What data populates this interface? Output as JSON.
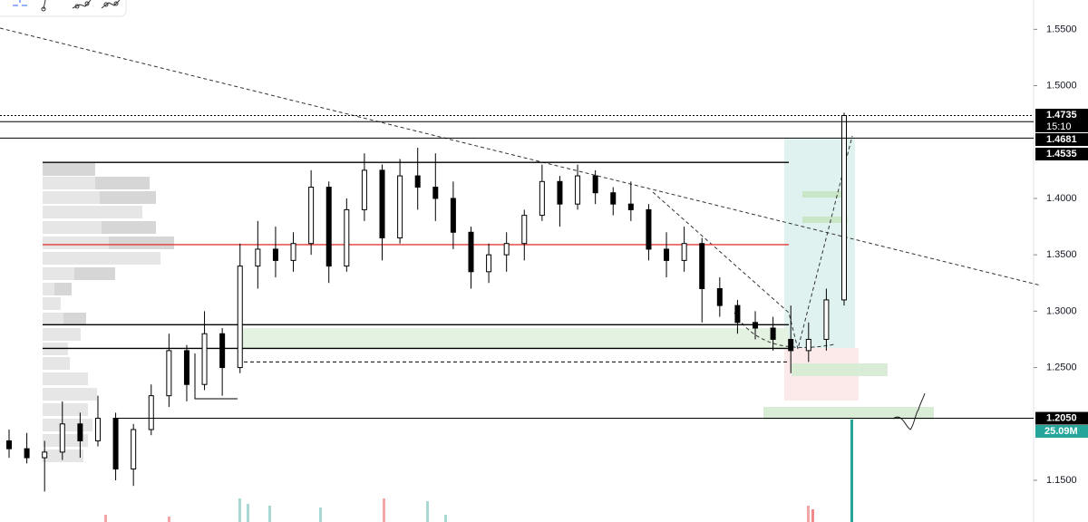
{
  "chart_data": {
    "type": "candlestick",
    "ylim": [
      1.113,
      1.576
    ],
    "yticks": [
      {
        "value": 1.15,
        "label": "1.1500"
      },
      {
        "value": 1.25,
        "label": "1.2500"
      },
      {
        "value": 1.3,
        "label": "1.3000"
      },
      {
        "value": 1.35,
        "label": "1.3500"
      },
      {
        "value": 1.4,
        "label": "1.4000"
      },
      {
        "value": 1.5,
        "label": "1.5000"
      },
      {
        "value": 1.55,
        "label": "1.5500"
      }
    ],
    "ohlc": [
      [
        1.185,
        1.195,
        1.17,
        1.178
      ],
      [
        1.178,
        1.192,
        1.165,
        1.17
      ],
      [
        1.17,
        1.185,
        1.14,
        1.175
      ],
      [
        1.175,
        1.22,
        1.168,
        1.2
      ],
      [
        1.2,
        1.21,
        1.17,
        1.185
      ],
      [
        1.185,
        1.225,
        1.18,
        1.205
      ],
      [
        1.205,
        1.21,
        1.15,
        1.16
      ],
      [
        1.16,
        1.2,
        1.145,
        1.195
      ],
      [
        1.195,
        1.235,
        1.19,
        1.225
      ],
      [
        1.225,
        1.28,
        1.215,
        1.265
      ],
      [
        1.265,
        1.27,
        1.22,
        1.235
      ],
      [
        1.235,
        1.3,
        1.23,
        1.28
      ],
      [
        1.28,
        1.285,
        1.225,
        1.25
      ],
      [
        1.25,
        1.36,
        1.245,
        1.34
      ],
      [
        1.34,
        1.38,
        1.32,
        1.355
      ],
      [
        1.355,
        1.375,
        1.33,
        1.345
      ],
      [
        1.345,
        1.37,
        1.335,
        1.36
      ],
      [
        1.36,
        1.425,
        1.35,
        1.41
      ],
      [
        1.41,
        1.415,
        1.325,
        1.34
      ],
      [
        1.34,
        1.4,
        1.335,
        1.39
      ],
      [
        1.39,
        1.44,
        1.38,
        1.425
      ],
      [
        1.425,
        1.43,
        1.345,
        1.365
      ],
      [
        1.365,
        1.435,
        1.36,
        1.42
      ],
      [
        1.42,
        1.445,
        1.39,
        1.41
      ],
      [
        1.41,
        1.44,
        1.38,
        1.4
      ],
      [
        1.4,
        1.415,
        1.355,
        1.37
      ],
      [
        1.37,
        1.375,
        1.32,
        1.335
      ],
      [
        1.335,
        1.36,
        1.325,
        1.35
      ],
      [
        1.35,
        1.37,
        1.335,
        1.36
      ],
      [
        1.36,
        1.39,
        1.345,
        1.385
      ],
      [
        1.385,
        1.43,
        1.38,
        1.415
      ],
      [
        1.415,
        1.42,
        1.375,
        1.395
      ],
      [
        1.395,
        1.43,
        1.39,
        1.42
      ],
      [
        1.42,
        1.425,
        1.395,
        1.405
      ],
      [
        1.405,
        1.41,
        1.385,
        1.395
      ],
      [
        1.395,
        1.415,
        1.38,
        1.39
      ],
      [
        1.39,
        1.395,
        1.345,
        1.355
      ],
      [
        1.355,
        1.37,
        1.33,
        1.345
      ],
      [
        1.345,
        1.375,
        1.335,
        1.36
      ],
      [
        1.36,
        1.365,
        1.29,
        1.32
      ],
      [
        1.32,
        1.33,
        1.295,
        1.305
      ],
      [
        1.305,
        1.31,
        1.28,
        1.29
      ],
      [
        1.29,
        1.3,
        1.275,
        1.285
      ],
      [
        1.285,
        1.295,
        1.265,
        1.275
      ],
      [
        1.275,
        1.305,
        1.245,
        1.265
      ],
      [
        1.265,
        1.29,
        1.255,
        1.275
      ],
      [
        1.275,
        1.32,
        1.265,
        1.31
      ],
      [
        1.31,
        1.476,
        1.305,
        1.4735
      ]
    ],
    "levels": [
      {
        "value": 1.432,
        "color": "#000000",
        "dash": false
      },
      {
        "value": 1.359,
        "color": "#e53935",
        "dash": false
      },
      {
        "value": 1.288,
        "color": "#000000",
        "dash": false
      },
      {
        "value": 1.267,
        "color": "#000000",
        "dash": false
      },
      {
        "value": 1.255,
        "color": "#000000",
        "dash": true
      }
    ],
    "price_tags": [
      1.4735,
      1.4681,
      1.4535,
      {
        "value": 1.205,
        "label": "1.2050"
      }
    ],
    "countdown": "15:10",
    "volume_tag": "25.09M"
  }
}
